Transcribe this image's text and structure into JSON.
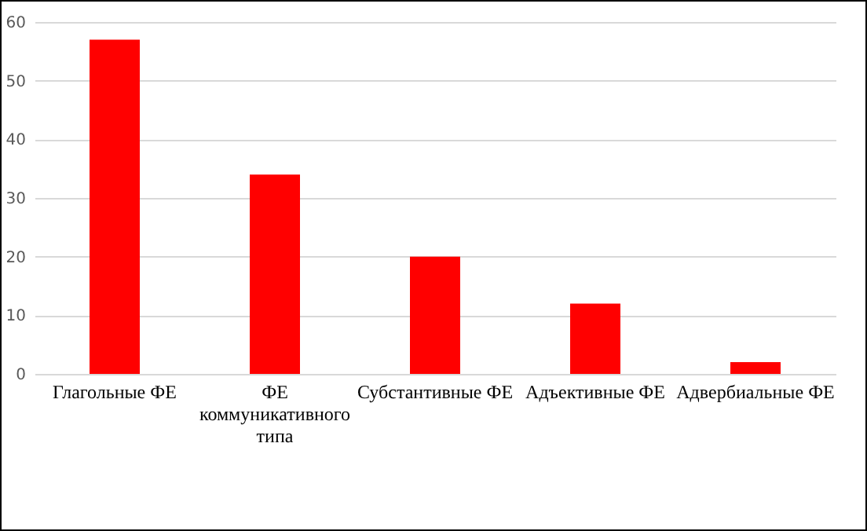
{
  "chart_data": {
    "type": "bar",
    "categories": [
      "Глагольные ФЕ",
      "ФЕ коммуникативного типа",
      "Субстантивные ФЕ",
      "Адъективные ФЕ",
      "Адвербиальные ФЕ"
    ],
    "values": [
      57,
      34,
      20,
      12,
      2
    ],
    "color": "#ff0000",
    "ylim": [
      0,
      60
    ],
    "yticks": [
      0,
      10,
      20,
      30,
      40,
      50,
      60
    ],
    "grid": "y"
  }
}
